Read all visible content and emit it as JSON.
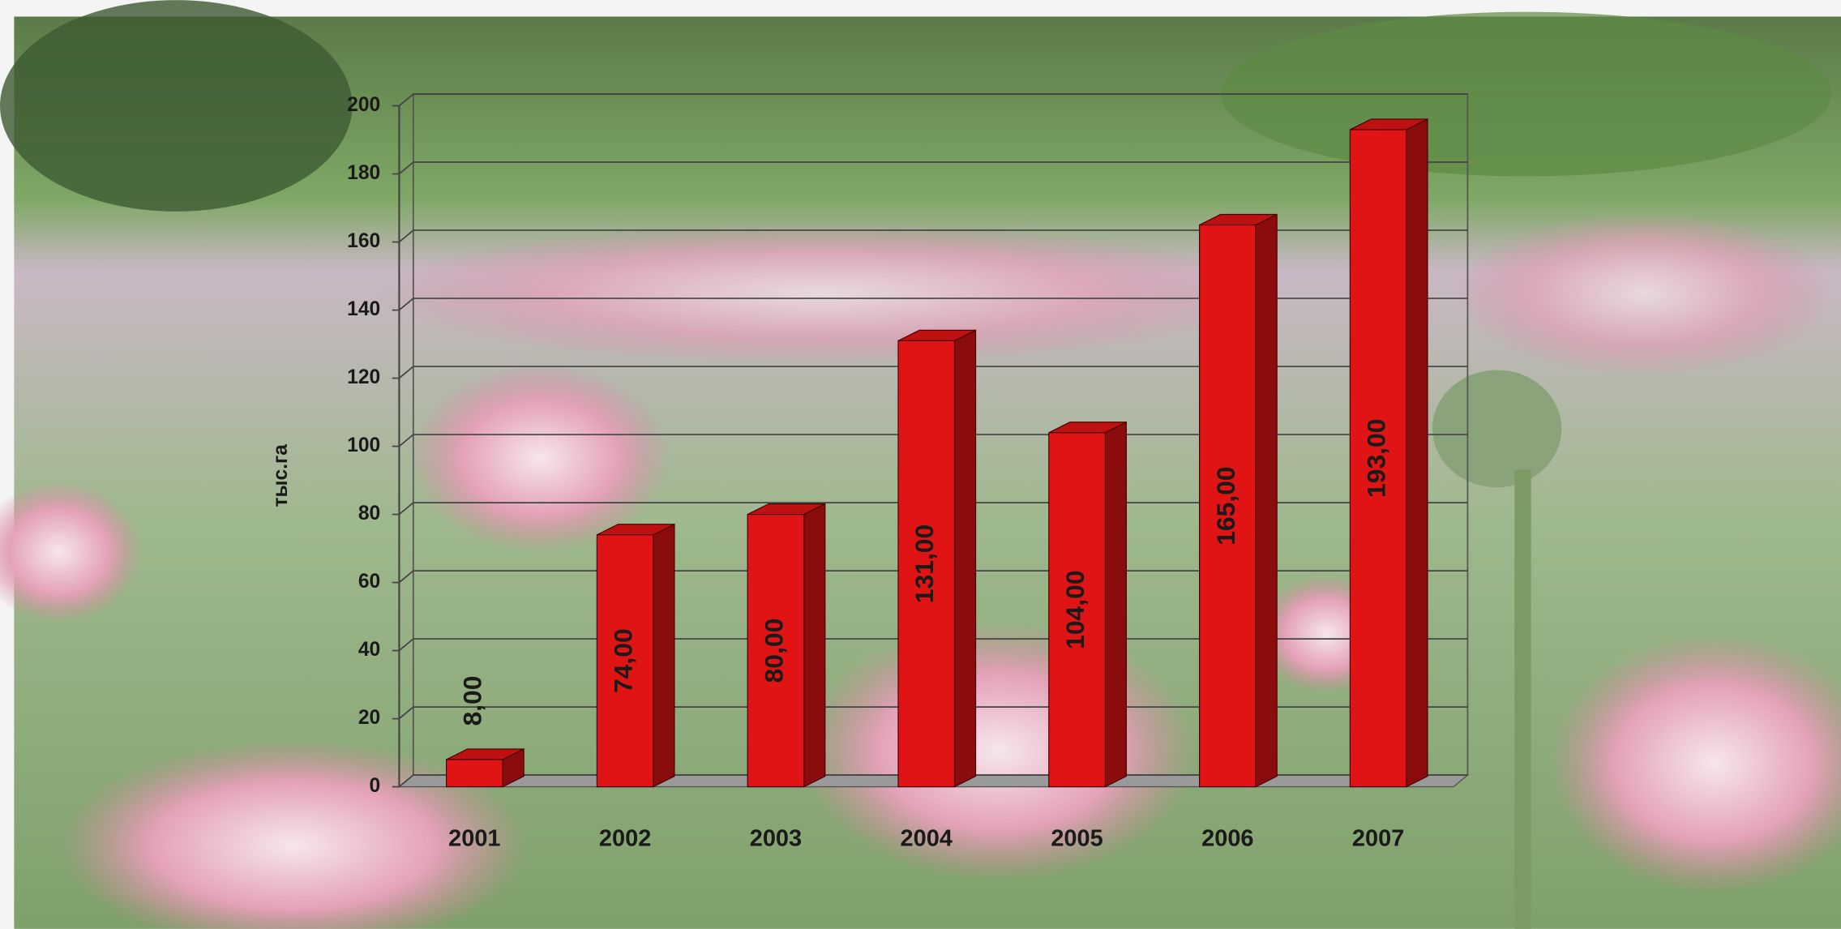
{
  "chart_data": {
    "type": "bar",
    "y_label": "тыс.га",
    "categories": [
      "2001",
      "2002",
      "2003",
      "2004",
      "2005",
      "2006",
      "2007"
    ],
    "values": [
      8,
      74,
      80,
      131,
      104,
      165,
      193
    ],
    "value_labels": [
      "8,00",
      "74,00",
      "80,00",
      "131,00",
      "104,00",
      "165,00",
      "193,00"
    ],
    "color": "#e01414",
    "ylim": [
      0,
      200
    ],
    "yticks": [
      0,
      20,
      40,
      60,
      80,
      100,
      120,
      140,
      160,
      180,
      200
    ],
    "grid": true
  }
}
